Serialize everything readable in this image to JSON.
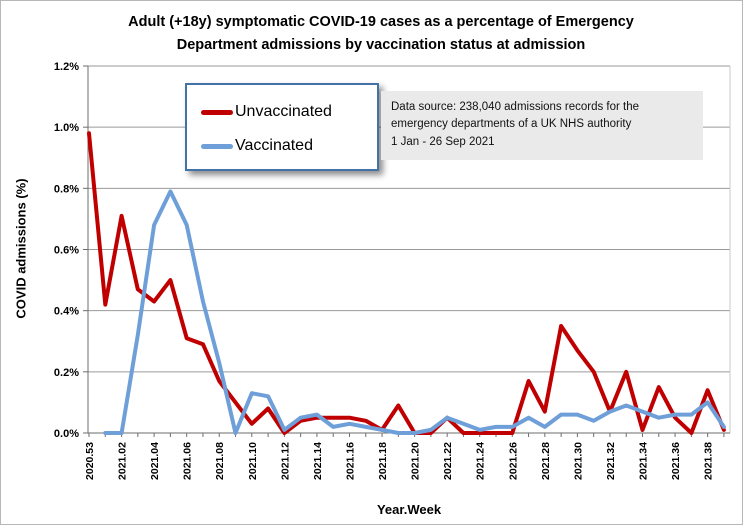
{
  "title": {
    "line1": "Adult (+18y) symptomatic COVID-19 cases as a percentage of Emergency",
    "line2": "Department admissions by vaccination status at admission"
  },
  "legend": {
    "items": [
      {
        "label": "Unvaccinated",
        "color": "#c00000"
      },
      {
        "label": "Vaccinated",
        "color": "#6f9fd8"
      }
    ]
  },
  "source_box": {
    "line1": "Data source:  238,040  admissions records for the",
    "line2": "emergency departments of a UK NHS authority",
    "line3": "1 Jan - 26 Sep 2021"
  },
  "chart_data": {
    "type": "line",
    "title": "Adult (+18y) symptomatic COVID-19 cases as a percentage of Emergency Department admissions by vaccination status at admission",
    "xlabel": "Year.Week",
    "ylabel": "COVID admissions (%)",
    "ylim": [
      0,
      1.2
    ],
    "ytick_step": 0.2,
    "ytick_labels": [
      "0.0%",
      "0.2%",
      "0.4%",
      "0.6%",
      "0.8%",
      "1.0%",
      "1.2%"
    ],
    "grid": true,
    "legend_position": "top-left-inside",
    "xtick_label_every": 2,
    "categories": [
      "2020.53",
      "2021.01",
      "2021.02",
      "2021.03",
      "2021.04",
      "2021.05",
      "2021.06",
      "2021.07",
      "2021.08",
      "2021.09",
      "2021.10",
      "2021.11",
      "2021.12",
      "2021.13",
      "2021.14",
      "2021.15",
      "2021.16",
      "2021.17",
      "2021.18",
      "2021.19",
      "2021.20",
      "2021.21",
      "2021.22",
      "2021.23",
      "2021.24",
      "2021.25",
      "2021.26",
      "2021.27",
      "2021.28",
      "2021.29",
      "2021.30",
      "2021.31",
      "2021.32",
      "2021.33",
      "2021.34",
      "2021.35",
      "2021.36",
      "2021.37",
      "2021.38",
      "2021.39"
    ],
    "series": [
      {
        "name": "Unvaccinated",
        "color": "#c00000",
        "values": [
          0.98,
          0.42,
          0.71,
          0.47,
          0.43,
          0.5,
          0.31,
          0.29,
          0.17,
          0.1,
          0.03,
          0.08,
          0.0,
          0.04,
          0.05,
          0.05,
          0.05,
          0.04,
          0.01,
          0.09,
          0.0,
          0.0,
          0.05,
          0.0,
          0.0,
          0.0,
          0.0,
          0.17,
          0.07,
          0.35,
          0.27,
          0.2,
          0.07,
          0.2,
          0.01,
          0.15,
          0.05,
          0.0,
          0.14,
          0.01
        ]
      },
      {
        "name": "Vaccinated",
        "color": "#6f9fd8",
        "values": [
          null,
          0.0,
          0.0,
          0.32,
          0.68,
          0.79,
          0.68,
          0.43,
          0.23,
          0.0,
          0.13,
          0.12,
          0.01,
          0.05,
          0.06,
          0.02,
          0.03,
          0.02,
          0.01,
          0.0,
          0.0,
          0.01,
          0.05,
          0.03,
          0.01,
          0.02,
          0.02,
          0.05,
          0.02,
          0.06,
          0.06,
          0.04,
          0.07,
          0.09,
          0.07,
          0.05,
          0.06,
          0.06,
          0.1,
          0.02
        ]
      }
    ]
  }
}
